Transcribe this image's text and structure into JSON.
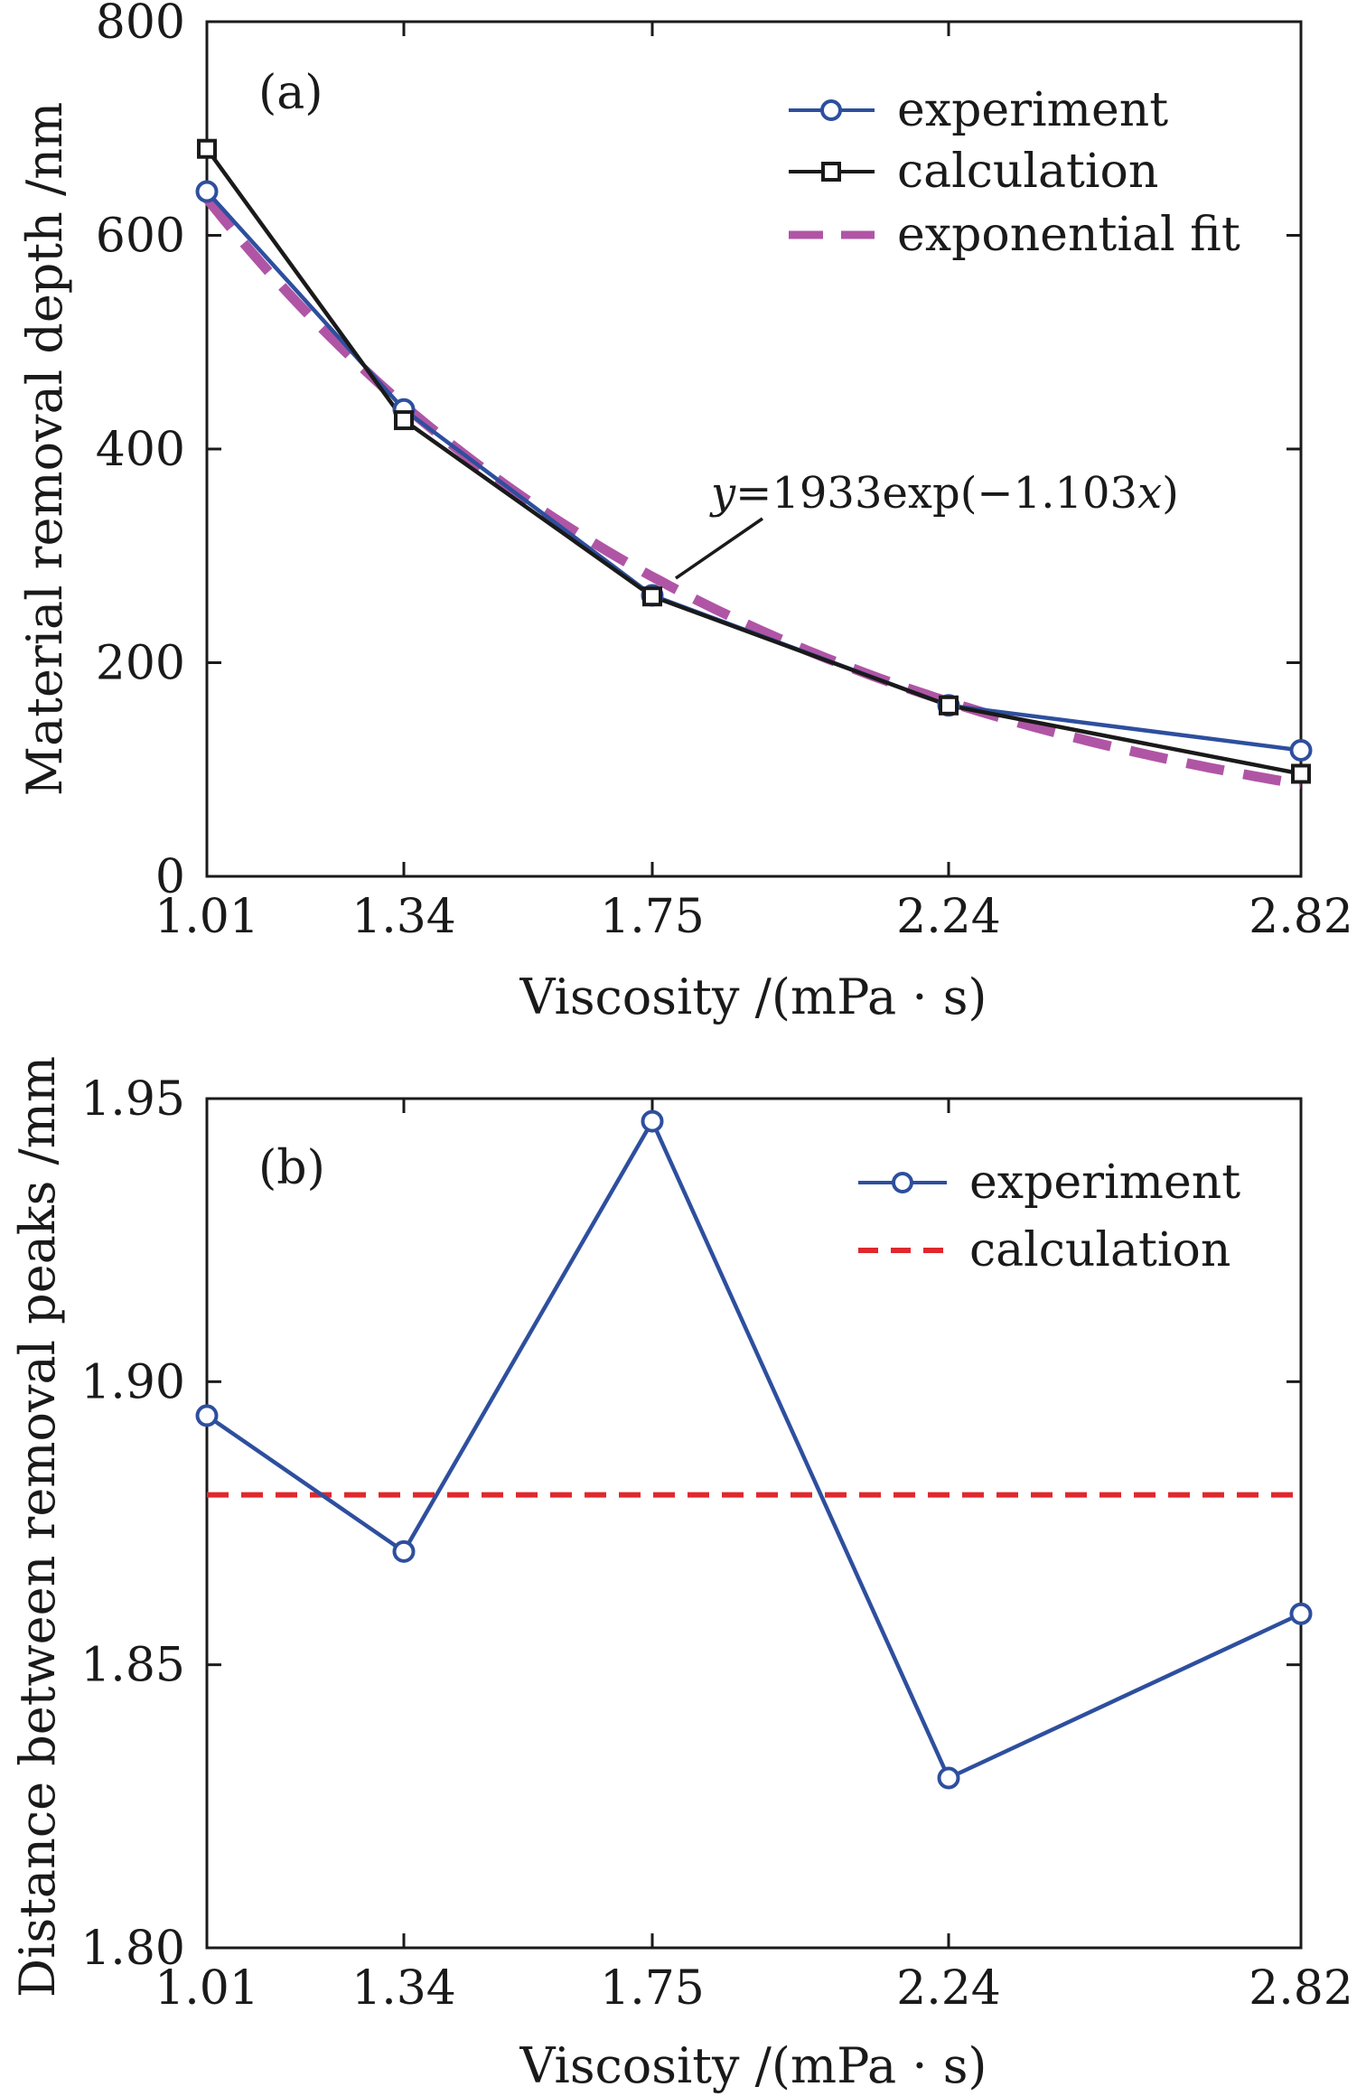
{
  "chart_data": [
    {
      "type": "line",
      "panel_label": "(a)",
      "title": "",
      "xlabel": "Viscosity /(mPa · s)",
      "ylabel": "Material removal depth /nm",
      "categories": [
        "1.01",
        "1.34",
        "1.75",
        "2.24",
        "2.82"
      ],
      "x": [
        1.01,
        1.34,
        1.75,
        2.24,
        2.82
      ],
      "xlim": [
        1.01,
        2.82
      ],
      "ylim": [
        0,
        800
      ],
      "yticks": [
        "0",
        "200",
        "400",
        "600",
        "800"
      ],
      "ytick_values": [
        0,
        200,
        400,
        600,
        800
      ],
      "legend_position": "top-right",
      "series": [
        {
          "name": "experiment",
          "values": [
            641,
            437,
            263,
            160,
            118
          ],
          "color": "#2e4f9e",
          "marker": "circle",
          "style": "solid"
        },
        {
          "name": "calculation",
          "values": [
            681,
            427,
            262,
            160,
            96
          ],
          "color": "#1a1a1a",
          "marker": "square",
          "style": "solid"
        },
        {
          "name": "exponential fit",
          "fit": {
            "a": 1933,
            "b": -1.103
          },
          "color": "#b055a5",
          "marker": "none",
          "style": "dashed"
        }
      ],
      "annotation": {
        "text_y": "y",
        "text_mid": "=1933exp(−1.103",
        "text_x": "x",
        "text_end": ")",
        "points_to_x": 1.75
      }
    },
    {
      "type": "line",
      "panel_label": "(b)",
      "title": "",
      "xlabel": "Viscosity /(mPa · s)",
      "ylabel": "Distance between removal peaks /mm",
      "categories": [
        "1.01",
        "1.34",
        "1.75",
        "2.24",
        "2.82"
      ],
      "x": [
        1.01,
        1.34,
        1.75,
        2.24,
        2.82
      ],
      "xlim": [
        1.01,
        2.82
      ],
      "ylim": [
        1.8,
        1.95
      ],
      "yticks": [
        "1.80",
        "1.85",
        "1.90",
        "1.95"
      ],
      "ytick_values": [
        1.8,
        1.85,
        1.9,
        1.95
      ],
      "legend_position": "top-right",
      "series": [
        {
          "name": "experiment",
          "values": [
            1.894,
            1.87,
            1.946,
            1.83,
            1.859
          ],
          "color": "#2e4f9e",
          "marker": "circle",
          "style": "solid"
        },
        {
          "name": "calculation",
          "constant": 1.88,
          "color": "#e0282e",
          "marker": "none",
          "style": "dashed"
        }
      ]
    }
  ]
}
